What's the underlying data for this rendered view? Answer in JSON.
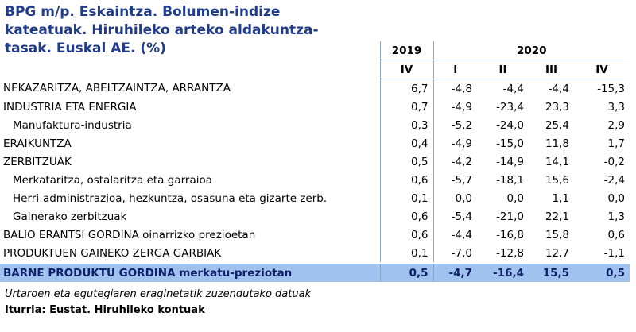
{
  "header": {
    "title": "BPG m/p. Eskaintza. Bolumen-indize kateatuak. Hiruhileko arteko aldakuntza-tasak. Euskal AE. (%)"
  },
  "table": {
    "years": [
      {
        "label": "2019",
        "span": 1
      },
      {
        "label": "2020",
        "span": 4
      }
    ],
    "quarters": [
      "IV",
      "I",
      "II",
      "III",
      "IV"
    ],
    "rows": [
      {
        "label": "NEKAZARITZA, ABELTZAINTZA, ARRANTZA",
        "indent": false,
        "values": [
          "6,7",
          "-4,8",
          "-4,4",
          "-4,4",
          "-15,3"
        ]
      },
      {
        "label": "INDUSTRIA ETA ENERGIA",
        "indent": false,
        "values": [
          "0,7",
          "-4,9",
          "-23,4",
          "23,3",
          "3,3"
        ]
      },
      {
        "label": "Manufaktura-industria",
        "indent": true,
        "values": [
          "0,3",
          "-5,2",
          "-24,0",
          "25,4",
          "2,9"
        ]
      },
      {
        "label": "ERAIKUNTZA",
        "indent": false,
        "values": [
          "0,4",
          "-4,9",
          "-15,0",
          "11,8",
          "1,7"
        ]
      },
      {
        "label": "ZERBITZUAK",
        "indent": false,
        "values": [
          "0,5",
          "-4,2",
          "-14,9",
          "14,1",
          "-0,2"
        ]
      },
      {
        "label": "Merkataritza, ostalaritza eta garraioa",
        "indent": true,
        "values": [
          "0,6",
          "-5,7",
          "-18,1",
          "15,6",
          "-2,4"
        ]
      },
      {
        "label": "Herri-administrazioa, hezkuntza, osasuna eta gizarte zerb.",
        "indent": true,
        "values": [
          "0,1",
          "0,0",
          "0,0",
          "1,1",
          "0,0"
        ]
      },
      {
        "label": "Gainerako zerbitzuak",
        "indent": true,
        "values": [
          "0,6",
          "-5,4",
          "-21,0",
          "22,1",
          "1,3"
        ]
      },
      {
        "label": "BALIO ERANTSI GORDINA oinarrizko prezioetan",
        "indent": false,
        "values": [
          "0,6",
          "-4,4",
          "-16,8",
          "15,8",
          "0,6"
        ]
      },
      {
        "label": "PRODUKTUEN GAINEKO ZERGA GARBIAK",
        "indent": false,
        "values": [
          "0,1",
          "-7,0",
          "-12,8",
          "12,7",
          "-1,1"
        ]
      }
    ],
    "total": {
      "label": "BARNE PRODUKTU GORDINA merkatu-preziotan",
      "values": [
        "0,5",
        "-4,7",
        "-16,4",
        "15,5",
        "0,5"
      ]
    }
  },
  "footer": {
    "note": "Urtaroen eta egutegiaren eraginetatik zuzendutako datuak",
    "source": "Iturria: Eustat. Hiruhileko kontuak"
  }
}
